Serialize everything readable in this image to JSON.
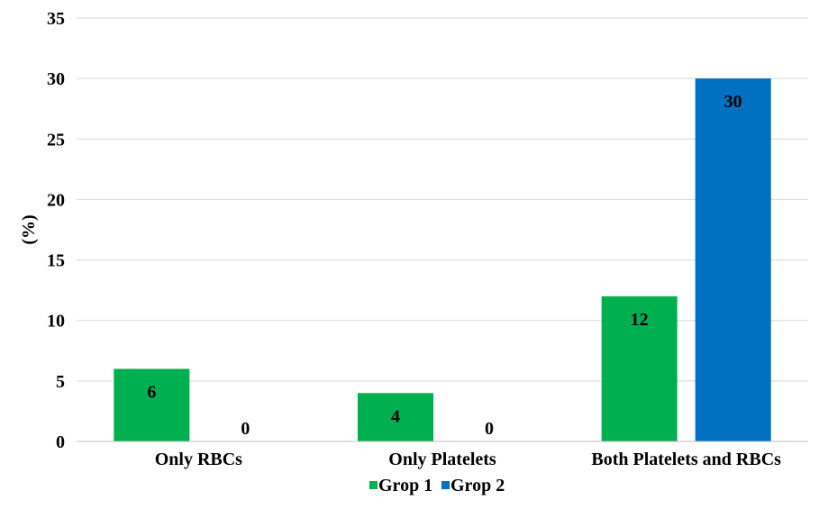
{
  "chart_data": {
    "type": "bar",
    "title": "",
    "xlabel": "",
    "ylabel": "(%)",
    "categories": [
      "Only RBCs",
      "Only Platelets",
      "Both Platelets and RBCs"
    ],
    "series": [
      {
        "name": "Grop 1",
        "values": [
          6,
          4,
          12
        ],
        "color": "#00b050"
      },
      {
        "name": "Grop 2",
        "values": [
          0,
          0,
          30
        ],
        "color": "#0070c0"
      }
    ],
    "ylim": [
      0,
      35
    ],
    "yticks": [
      0,
      5,
      10,
      15,
      20,
      25,
      30,
      35
    ],
    "grid": true,
    "legend": "bottom",
    "data_labels": true
  }
}
